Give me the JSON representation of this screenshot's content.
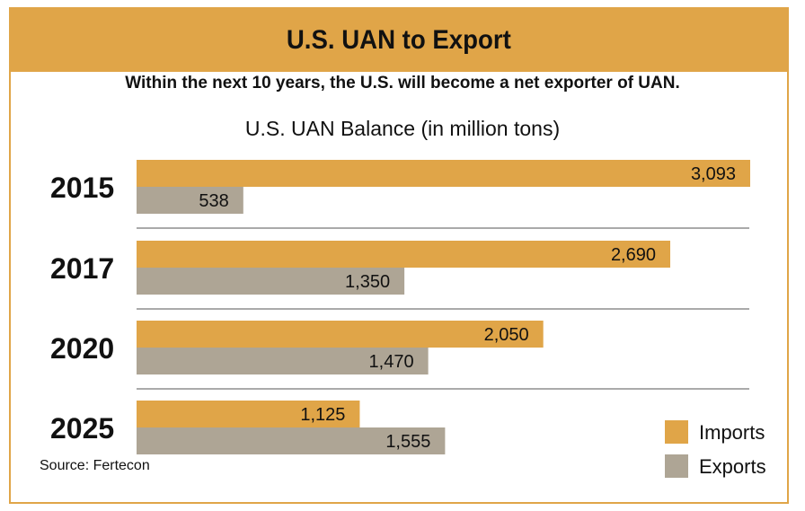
{
  "header": {
    "title": "U.S. UAN to Export"
  },
  "subtitle": "Within the next 10 years, the U.S. will become a net exporter of UAN.",
  "source": "Source: Fertecon",
  "colors": {
    "imports": "#e0a548",
    "exports": "#aea595",
    "frame": "#e0a548",
    "divider": "#555555"
  },
  "chart_data": {
    "type": "bar",
    "orientation": "horizontal",
    "title": "U.S. UAN Balance (in million tons)",
    "categories": [
      "2015",
      "2017",
      "2020",
      "2025"
    ],
    "series": [
      {
        "name": "Imports",
        "values": [
          3093,
          2690,
          2050,
          1125
        ],
        "labels": [
          "3,093",
          "2,690",
          "2,050",
          "1,125"
        ]
      },
      {
        "name": "Exports",
        "values": [
          538,
          1350,
          1470,
          1555
        ],
        "labels": [
          "538",
          "1,350",
          "1,470",
          "1,555"
        ]
      }
    ],
    "xlim": [
      0,
      3093
    ],
    "grid": false,
    "legend": "bottom-right"
  }
}
